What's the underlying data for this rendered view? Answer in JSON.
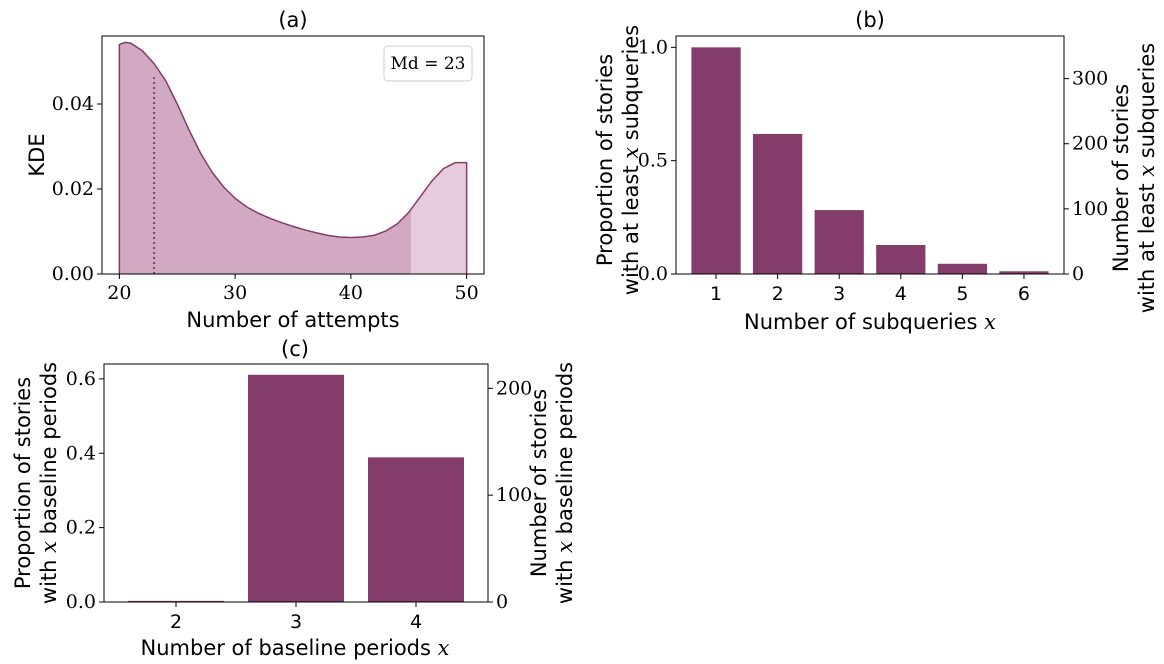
{
  "colors": {
    "bar": "#843c6a",
    "kde_line": "#843c6a",
    "kde_fill_main": "#d1a9c3",
    "kde_fill_tail": "#e5cbdc"
  },
  "chart_data": [
    {
      "panel": "(a)",
      "type": "area",
      "title": "(a)",
      "xlabel": "Number of attempts",
      "ylabel": "KDE",
      "xlim": [
        20,
        50
      ],
      "ylim": [
        0,
        0.056
      ],
      "xticks": [
        "20",
        "30",
        "40",
        "50"
      ],
      "yticks": [
        "0.00",
        "0.02",
        "0.04"
      ],
      "x": [
        20,
        20.5,
        21,
        22,
        23,
        24,
        25,
        26,
        27,
        28,
        29,
        30,
        31,
        32,
        33,
        34,
        35,
        36,
        37,
        38,
        39,
        40,
        41,
        42,
        43,
        44,
        45,
        46,
        47,
        48,
        49,
        50
      ],
      "y": [
        0.054,
        0.0545,
        0.0543,
        0.0525,
        0.0495,
        0.0455,
        0.04,
        0.034,
        0.0285,
        0.024,
        0.0205,
        0.0178,
        0.0158,
        0.0143,
        0.0131,
        0.0121,
        0.0112,
        0.0104,
        0.0097,
        0.0091,
        0.0087,
        0.0086,
        0.0087,
        0.0091,
        0.0101,
        0.0118,
        0.0145,
        0.0182,
        0.0219,
        0.0248,
        0.0262,
        0.0262
      ],
      "median": 23,
      "median_kde": 0.0463,
      "tail_start": 45.2,
      "legend": "Md = 23",
      "legend_position": "upper right"
    },
    {
      "panel": "(b)",
      "type": "bar",
      "title": "(b)",
      "xlabel": "Number of subqueries x",
      "ylabel": "Proportion of stories with at least x subqueries",
      "ylabel_lines": [
        "Proportion of stories",
        "with at least x subqueries"
      ],
      "y2label_lines": [
        "Number of stories",
        "with at least x subqueries"
      ],
      "categories": [
        "1",
        "2",
        "3",
        "4",
        "5",
        "6"
      ],
      "values": [
        1.0,
        0.618,
        0.282,
        0.128,
        0.045,
        0.012
      ],
      "ylim": [
        0,
        1.05
      ],
      "yticks": [
        "0.0",
        "0.5",
        "1.0"
      ],
      "y2ticks": [
        "0",
        "100",
        "200",
        "300"
      ],
      "y2_total": 348
    },
    {
      "panel": "(c)",
      "type": "bar",
      "title": "(c)",
      "xlabel": "Number of baseline periods x",
      "ylabel_lines": [
        "Proportion of stories",
        "with x baseline periods"
      ],
      "y2label_lines": [
        "Number of stories",
        "with x baseline periods"
      ],
      "categories": [
        "2",
        "3",
        "4"
      ],
      "values": [
        0.003,
        0.611,
        0.389
      ],
      "ylim": [
        0,
        0.64
      ],
      "yticks": [
        "0.0",
        "0.2",
        "0.4",
        "0.6"
      ],
      "y2ticks": [
        "0",
        "100",
        "200"
      ],
      "y2_total": 348
    }
  ]
}
